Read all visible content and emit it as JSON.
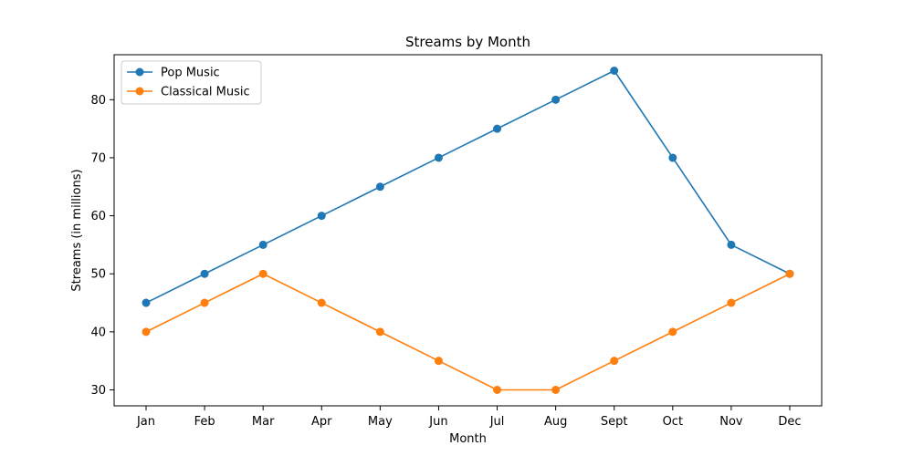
{
  "chart_data": {
    "type": "line",
    "title": "Streams by Month",
    "xlabel": "Month",
    "ylabel": "Streams (in millions)",
    "categories": [
      "Jan",
      "Feb",
      "Mar",
      "Apr",
      "May",
      "Jun",
      "Jul",
      "Aug",
      "Sept",
      "Oct",
      "Nov",
      "Dec"
    ],
    "series": [
      {
        "name": "Pop Music",
        "color": "#1f77b4",
        "values": [
          45,
          50,
          55,
          60,
          65,
          70,
          75,
          80,
          85,
          70,
          55,
          50
        ]
      },
      {
        "name": "Classical Music",
        "color": "#ff7f0e",
        "values": [
          40,
          45,
          50,
          45,
          40,
          35,
          30,
          30,
          35,
          40,
          45,
          50
        ]
      }
    ],
    "yticks": [
      30,
      40,
      50,
      60,
      70,
      80
    ],
    "ylim": [
      27.25,
      87.75
    ],
    "grid": false,
    "legend_position": "top-left",
    "marker": "circle"
  }
}
